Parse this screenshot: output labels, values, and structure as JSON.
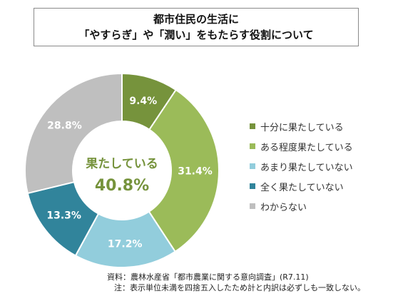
{
  "title": {
    "line1": "都市住民の生活に",
    "line2": "「やすらぎ」や「潤い」をもたらす役割について"
  },
  "chart_data": {
    "type": "pie",
    "style": "donut",
    "categories": [
      "十分に果たしている",
      "ある程度果たしている",
      "あまり果たしていない",
      "全く果たしていない",
      "わからない"
    ],
    "values": [
      9.4,
      31.4,
      17.2,
      13.3,
      28.8
    ],
    "value_labels": [
      "9.4%",
      "31.4%",
      "17.2%",
      "13.3%",
      "28.8%"
    ],
    "colors": [
      "#76933c",
      "#9bbb59",
      "#92cddc",
      "#31849b",
      "#bfbfbf"
    ],
    "legend_placement": "right",
    "center_label": "果たしている",
    "center_value": "40.8%",
    "center_color": "#76933c"
  },
  "notes": {
    "source": "資料：農林水産省「都市農業に関する意向調査」(R7.11)",
    "note": "注：表示単位未満を四捨五入したため計と内訳は必ずしも一致しない。"
  }
}
